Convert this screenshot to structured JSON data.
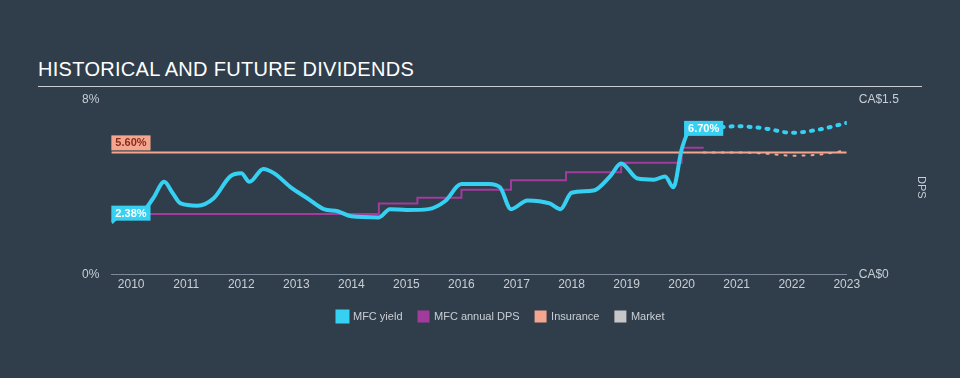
{
  "chart_data": {
    "type": "line",
    "title": "HISTORICAL AND FUTURE DIVIDENDS",
    "xlim": [
      2009.64,
      2023
    ],
    "xticks": [
      2010,
      2011,
      2012,
      2013,
      2014,
      2015,
      2016,
      2017,
      2018,
      2019,
      2020,
      2021,
      2022,
      2023
    ],
    "ylim": [
      0,
      8
    ],
    "yticks": [
      {
        "value": 0,
        "label": "0%"
      },
      {
        "value": 8,
        "label": "8%"
      }
    ],
    "y2lim": [
      0,
      1.5
    ],
    "y2ticks": [
      {
        "value": 0,
        "label": "CA$0"
      },
      {
        "value": 1.5,
        "label": "CA$1.5"
      }
    ],
    "y2label": "DPS",
    "grid": false,
    "legend": "bottom",
    "series": [
      {
        "name": "MFC yield",
        "color": "#36d1f2",
        "line_style": "solid",
        "marker": "none",
        "x": [
          2009.64,
          2009.8,
          2010.0,
          2010.2,
          2010.4,
          2010.6,
          2010.75,
          2010.9,
          2011.2,
          2011.5,
          2011.8,
          2012.0,
          2012.15,
          2012.4,
          2012.6,
          2012.9,
          2013.2,
          2013.5,
          2013.75,
          2014.0,
          2014.5,
          2014.7,
          2015.0,
          2015.4,
          2015.7,
          2016.0,
          2016.5,
          2016.7,
          2016.9,
          2017.2,
          2017.6,
          2017.8,
          2018.0,
          2018.4,
          2018.7,
          2018.9,
          2019.2,
          2019.5,
          2019.7,
          2019.85,
          2020.0,
          2020.15,
          2020.4
        ],
        "values": [
          2.38,
          2.76,
          2.86,
          2.9,
          3.5,
          4.25,
          3.75,
          3.26,
          3.16,
          3.5,
          4.5,
          4.64,
          4.25,
          4.84,
          4.64,
          4.0,
          3.5,
          3.0,
          2.9,
          2.67,
          2.62,
          3.0,
          2.96,
          3.0,
          3.36,
          4.15,
          4.15,
          4.0,
          3.0,
          3.4,
          3.26,
          3.0,
          3.75,
          3.85,
          4.5,
          5.09,
          4.4,
          4.35,
          4.5,
          4.0,
          5.73,
          6.6,
          6.7
        ]
      },
      {
        "name": "MFC annual DPS",
        "color": "#a23b9c",
        "type": "step",
        "line_style": "solid",
        "marker": "none",
        "axis": "y2",
        "x": [
          2009.64,
          2014.5,
          2015.2,
          2016.0,
          2016.9,
          2017.9,
          2018.9,
          2020.0,
          2020.4
        ],
        "values": [
          0.52,
          0.61,
          0.66,
          0.73,
          0.81,
          0.88,
          0.96,
          1.09,
          1.09
        ]
      },
      {
        "name": "Insurance",
        "color": "#f4a58e",
        "line_style": "solid",
        "marker": "none",
        "x": [
          2009.64,
          2023
        ],
        "values": [
          5.6,
          5.6
        ]
      },
      {
        "name": "Market",
        "color": "#c7c7c7",
        "line_style": "solid",
        "marker": "none",
        "x": [],
        "values": []
      },
      {
        "name": "MFC yield",
        "color": "#36d1f2",
        "line_style": "dotted",
        "marker": "none",
        "x": [
          2020.4,
          2020.7,
          2021.0,
          2021.5,
          2022.0,
          2022.5,
          2023.0
        ],
        "values": [
          6.7,
          6.75,
          6.8,
          6.7,
          6.5,
          6.65,
          6.95
        ]
      },
      {
        "name": "Insurance",
        "color": "#f4a58e",
        "line_style": "dotted",
        "marker": "none",
        "x": [
          2020.4,
          2021.0,
          2021.5,
          2022.0,
          2022.5,
          2023.0
        ],
        "values": [
          5.6,
          5.6,
          5.55,
          5.45,
          5.5,
          5.7
        ]
      }
    ],
    "annotations": [
      {
        "text": "2.38%",
        "x": 2009.64,
        "y": 2.38,
        "color": "#36d1f2"
      },
      {
        "text": "6.70%",
        "x": 2020.4,
        "y": 6.7,
        "color": "#36d1f2"
      },
      {
        "text": "5.60%",
        "x": 2009.64,
        "y": 5.6,
        "color": "#f4a58e"
      }
    ]
  }
}
